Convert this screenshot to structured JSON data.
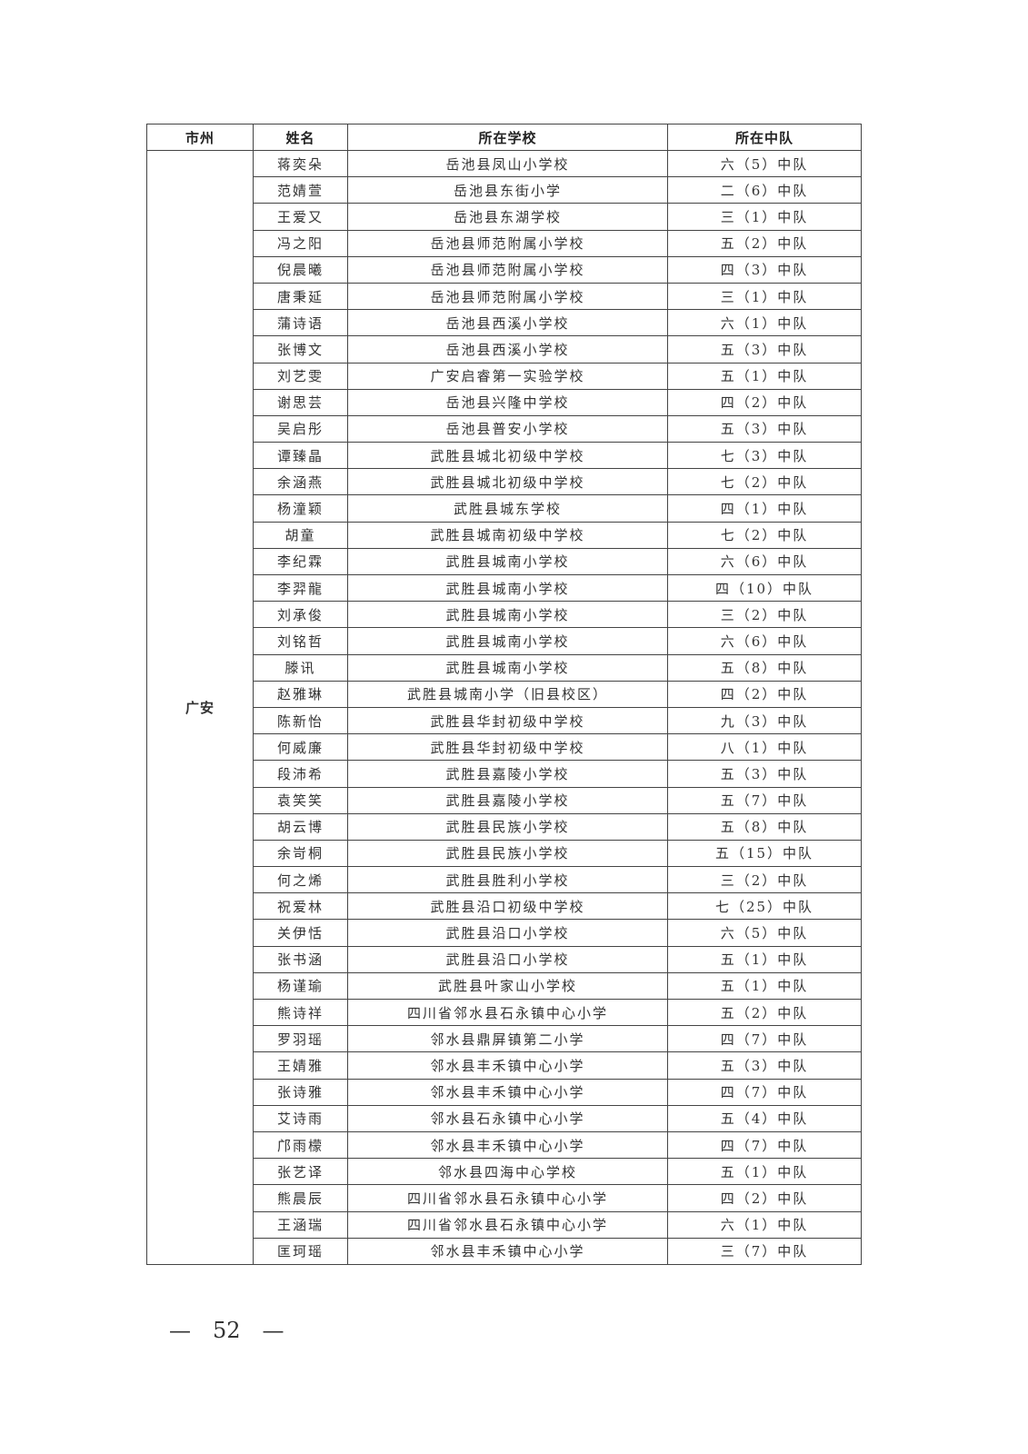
{
  "headers": [
    "市州",
    "姓名",
    "所在学校",
    "所在中队"
  ],
  "city": "广安",
  "rows": [
    [
      "蒋奕朵",
      "岳池县凤山小学校",
      "六（5）中队"
    ],
    [
      "范婧萱",
      "岳池县东街小学",
      "二（6）中队"
    ],
    [
      "王爱又",
      "岳池县东湖学校",
      "三（1）中队"
    ],
    [
      "冯之阳",
      "岳池县师范附属小学校",
      "五（2）中队"
    ],
    [
      "倪晨曦",
      "岳池县师范附属小学校",
      "四（3）中队"
    ],
    [
      "唐秉延",
      "岳池县师范附属小学校",
      "三（1）中队"
    ],
    [
      "蒲诗语",
      "岳池县西溪小学校",
      "六（1）中队"
    ],
    [
      "张博文",
      "岳池县西溪小学校",
      "五（3）中队"
    ],
    [
      "刘艺雯",
      "广安启睿第一实验学校",
      "五（1）中队"
    ],
    [
      "谢思芸",
      "岳池县兴隆中学校",
      "四（2）中队"
    ],
    [
      "吴启彤",
      "岳池县普安小学校",
      "五（3）中队"
    ],
    [
      "谭臻晶",
      "武胜县城北初级中学校",
      "七（3）中队"
    ],
    [
      "余涵燕",
      "武胜县城北初级中学校",
      "七（2）中队"
    ],
    [
      "杨潼颖",
      "武胜县城东学校",
      "四（1）中队"
    ],
    [
      "胡童",
      "武胜县城南初级中学校",
      "七（2）中队"
    ],
    [
      "李纪霖",
      "武胜县城南小学校",
      "六（6）中队"
    ],
    [
      "李羿龍",
      "武胜县城南小学校",
      "四（10）中队"
    ],
    [
      "刘承俊",
      "武胜县城南小学校",
      "三（2）中队"
    ],
    [
      "刘铭哲",
      "武胜县城南小学校",
      "六（6）中队"
    ],
    [
      "滕讯",
      "武胜县城南小学校",
      "五（8）中队"
    ],
    [
      "赵雅琳",
      "武胜县城南小学（旧县校区）",
      "四（2）中队"
    ],
    [
      "陈新怡",
      "武胜县华封初级中学校",
      "九（3）中队"
    ],
    [
      "何威廉",
      "武胜县华封初级中学校",
      "八（1）中队"
    ],
    [
      "段沛希",
      "武胜县嘉陵小学校",
      "五（3）中队"
    ],
    [
      "袁笑笑",
      "武胜县嘉陵小学校",
      "五（7）中队"
    ],
    [
      "胡云博",
      "武胜县民族小学校",
      "五（8）中队"
    ],
    [
      "余岢桐",
      "武胜县民族小学校",
      "五（15）中队"
    ],
    [
      "何之烯",
      "武胜县胜利小学校",
      "三（2）中队"
    ],
    [
      "祝爱林",
      "武胜县沿口初级中学校",
      "七（25）中队"
    ],
    [
      "关伊恬",
      "武胜县沿口小学校",
      "六（5）中队"
    ],
    [
      "张书涵",
      "武胜县沿口小学校",
      "五（1）中队"
    ],
    [
      "杨谨瑜",
      "武胜县叶家山小学校",
      "五（1）中队"
    ],
    [
      "熊诗祥",
      "四川省邻水县石永镇中心小学",
      "五（2）中队"
    ],
    [
      "罗羽瑶",
      "邻水县鼎屏镇第二小学",
      "四（7）中队"
    ],
    [
      "王婧雅",
      "邻水县丰禾镇中心小学",
      "五（3）中队"
    ],
    [
      "张诗雅",
      "邻水县丰禾镇中心小学",
      "四（7）中队"
    ],
    [
      "艾诗雨",
      "邻水县石永镇中心小学",
      "五（4）中队"
    ],
    [
      "邝雨檬",
      "邻水县丰禾镇中心小学",
      "四（7）中队"
    ],
    [
      "张艺译",
      "邻水县四海中心学校",
      "五（1）中队"
    ],
    [
      "熊晨辰",
      "四川省邻水县石永镇中心小学",
      "四（2）中队"
    ],
    [
      "王涵瑞",
      "四川省邻水县石永镇中心小学",
      "六（1）中队"
    ],
    [
      "匡珂瑶",
      "邻水县丰禾镇中心小学",
      "三（7）中队"
    ]
  ],
  "page_number": "—　52　—"
}
